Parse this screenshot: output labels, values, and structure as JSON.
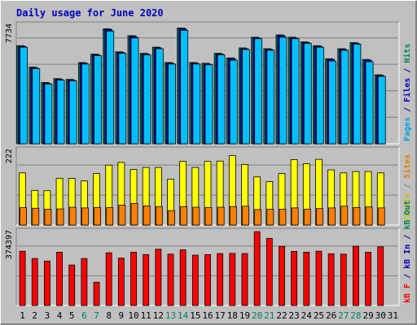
{
  "chart_data": {
    "type": "bar",
    "title": "Daily usage for June 2020",
    "days": [
      "1",
      "2",
      "3",
      "4",
      "5",
      "6",
      "7",
      "8",
      "9",
      "10",
      "11",
      "12",
      "13",
      "14",
      "15",
      "16",
      "17",
      "18",
      "19",
      "20",
      "21",
      "22",
      "23",
      "24",
      "25",
      "26",
      "27",
      "28",
      "29",
      "30",
      "31"
    ],
    "weekend_days": [
      "6",
      "7",
      "13",
      "14",
      "20",
      "21",
      "27",
      "28"
    ],
    "panels": [
      {
        "ylabel_parts": [
          {
            "text": "Pages",
            "color": "#00a0e0"
          },
          {
            "text": " / ",
            "color": "#0000c0"
          },
          {
            "text": "Files",
            "color": "#0000c0"
          },
          {
            "text": " / ",
            "color": "#0000c0"
          },
          {
            "text": "Hits",
            "color": "#008060"
          }
        ],
        "max_label": "7734",
        "ylim": [
          0,
          7734
        ],
        "series": [
          {
            "name": "Hits",
            "color": "#008060",
            "values": [
              6400,
              5000,
              4000,
              4250,
              4200,
              5300,
              5850,
              7500,
              6000,
              7050,
              5900,
              6300,
              5300,
              7550,
              5300,
              5250,
              5900,
              5600,
              6250,
              6950,
              6200,
              7100,
              6950,
              6650,
              6400,
              5550,
              6200,
              6600,
              5500,
              4500
            ]
          },
          {
            "name": "Files",
            "color": "#0000c0",
            "values": [
              6350,
              4950,
              3950,
              4200,
              4150,
              5250,
              5800,
              7450,
              5950,
              7000,
              5850,
              6250,
              5250,
              7500,
              5250,
              5200,
              5850,
              5550,
              6200,
              6900,
              6150,
              7050,
              6900,
              6600,
              6350,
              5500,
              6150,
              6550,
              5450,
              4450
            ]
          },
          {
            "name": "Pages",
            "color": "#00c0ff",
            "values": [
              6300,
              4900,
              3900,
              4150,
              4100,
              5200,
              5750,
              7350,
              5900,
              6900,
              5800,
              6200,
              5200,
              7400,
              5200,
              5150,
              5800,
              5450,
              6150,
              6850,
              6100,
              6950,
              6850,
              6550,
              6300,
              5400,
              6100,
              6500,
              5350,
              4400
            ]
          }
        ]
      },
      {
        "ylabel_parts": [
          {
            "text": "Visits",
            "color": "#c0c000"
          },
          {
            "text": " / ",
            "color": "#808080"
          },
          {
            "text": "Sites",
            "color": "#e08000"
          }
        ],
        "max_label": "222",
        "ylim": [
          0,
          222
        ],
        "series": [
          {
            "name": "Visits",
            "color": "#ffff00",
            "values": [
              155,
              103,
              102,
              139,
              139,
              131,
              153,
              178,
              186,
              165,
              171,
              171,
              136,
              189,
              171,
              189,
              190,
              206,
              180,
              143,
              129,
              153,
              194,
              182,
              195,
              164,
              155,
              159,
              159,
              155
            ]
          },
          {
            "name": "Sites",
            "color": "#ff8000",
            "values": [
              52,
              50,
              47,
              48,
              53,
              51,
              52,
              52,
              59,
              64,
              57,
              55,
              43,
              55,
              53,
              52,
              53,
              55,
              56,
              46,
              47,
              47,
              51,
              47,
              49,
              51,
              56,
              52,
              54,
              51
            ]
          }
        ]
      },
      {
        "ylabel_parts": [
          {
            "text": "kB F",
            "color": "#ff0000"
          },
          {
            "text": " / ",
            "color": "#0000c0"
          },
          {
            "text": "kB In",
            "color": "#0000c0"
          },
          {
            "text": " / ",
            "color": "#0000c0"
          },
          {
            "text": "kB Out",
            "color": "#008060"
          }
        ],
        "max_label": "374397",
        "ylim": [
          0,
          374397
        ],
        "series": [
          {
            "name": "kB F",
            "color": "#ff0000",
            "values": [
              275000,
              238000,
              225000,
              270000,
              205000,
              238000,
              118000,
              267000,
              240000,
              270000,
              258000,
              285000,
              260000,
              282000,
              255000,
              258000,
              263000,
              264000,
              263000,
              374000,
              340000,
              300000,
              274000,
              270000,
              275000,
              262000,
              260000,
              300000,
              270000,
              297000
            ]
          }
        ]
      }
    ]
  }
}
